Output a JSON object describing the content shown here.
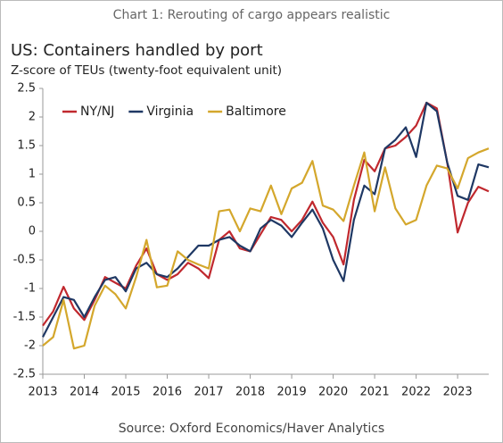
{
  "chart_data": {
    "type": "line",
    "header": "Chart 1: Rerouting of cargo appears realistic",
    "title": "US: Containers handled by port",
    "subtitle": "Z-score of TEUs (twenty-foot equivalent unit)",
    "source": "Source: Oxford Economics/Haver Analytics",
    "x": [
      2013,
      2013.25,
      2013.5,
      2013.75,
      2014,
      2014.25,
      2014.5,
      2014.75,
      2015,
      2015.25,
      2015.5,
      2015.75,
      2016,
      2016.25,
      2016.5,
      2016.75,
      2017,
      2017.25,
      2017.5,
      2017.75,
      2018,
      2018.25,
      2018.5,
      2018.75,
      2019,
      2019.25,
      2019.5,
      2019.75,
      2020,
      2020.25,
      2020.5,
      2020.75,
      2021,
      2021.25,
      2021.5,
      2021.75,
      2022,
      2022.25,
      2022.5,
      2022.75,
      2023,
      2023.25,
      2023.5,
      2023.75
    ],
    "series": [
      {
        "name": "NY/NJ",
        "color": "#c0282e",
        "values": [
          -1.65,
          -1.4,
          -0.97,
          -1.35,
          -1.55,
          -1.2,
          -0.8,
          -0.9,
          -1.0,
          -0.6,
          -0.3,
          -0.75,
          -0.85,
          -0.75,
          -0.55,
          -0.65,
          -0.82,
          -0.15,
          0.0,
          -0.3,
          -0.35,
          -0.05,
          0.25,
          0.2,
          0.0,
          0.2,
          0.52,
          0.15,
          -0.1,
          -0.58,
          0.55,
          1.25,
          1.05,
          1.45,
          1.5,
          1.65,
          1.85,
          2.25,
          2.15,
          1.2,
          -0.02,
          0.5,
          0.78,
          0.7
        ]
      },
      {
        "name": "Virginia",
        "color": "#1f3864",
        "values": [
          -1.85,
          -1.5,
          -1.15,
          -1.2,
          -1.5,
          -1.15,
          -0.85,
          -0.8,
          -1.05,
          -0.65,
          -0.55,
          -0.75,
          -0.8,
          -0.65,
          -0.45,
          -0.25,
          -0.25,
          -0.15,
          -0.1,
          -0.25,
          -0.35,
          0.05,
          0.2,
          0.1,
          -0.1,
          0.15,
          0.38,
          0.05,
          -0.5,
          -0.87,
          0.2,
          0.8,
          0.65,
          1.45,
          1.6,
          1.82,
          1.3,
          2.25,
          2.1,
          1.2,
          0.62,
          0.55,
          1.17,
          1.12
        ]
      },
      {
        "name": "Baltimore",
        "color": "#d4a72c",
        "values": [
          -2.0,
          -1.85,
          -1.2,
          -2.05,
          -2.0,
          -1.3,
          -0.95,
          -1.1,
          -1.35,
          -0.8,
          -0.15,
          -0.98,
          -0.95,
          -0.35,
          -0.5,
          -0.58,
          -0.65,
          0.35,
          0.38,
          0.0,
          0.4,
          0.35,
          0.8,
          0.3,
          0.75,
          0.85,
          1.23,
          0.45,
          0.38,
          0.18,
          0.8,
          1.38,
          0.35,
          1.12,
          0.4,
          0.12,
          0.2,
          0.8,
          1.15,
          1.1,
          0.75,
          1.28,
          1.38,
          1.45
        ]
      }
    ],
    "xlim": [
      2013,
      2023.75
    ],
    "xticks": [
      2013,
      2014,
      2015,
      2016,
      2017,
      2018,
      2019,
      2020,
      2021,
      2022,
      2023
    ],
    "ylim": [
      -2.5,
      2.5
    ],
    "yticks": [
      2.5,
      2,
      1.5,
      1,
      0.5,
      0,
      -0.5,
      -1,
      -1.5,
      -2,
      -2.5
    ],
    "legend": "top-left"
  }
}
